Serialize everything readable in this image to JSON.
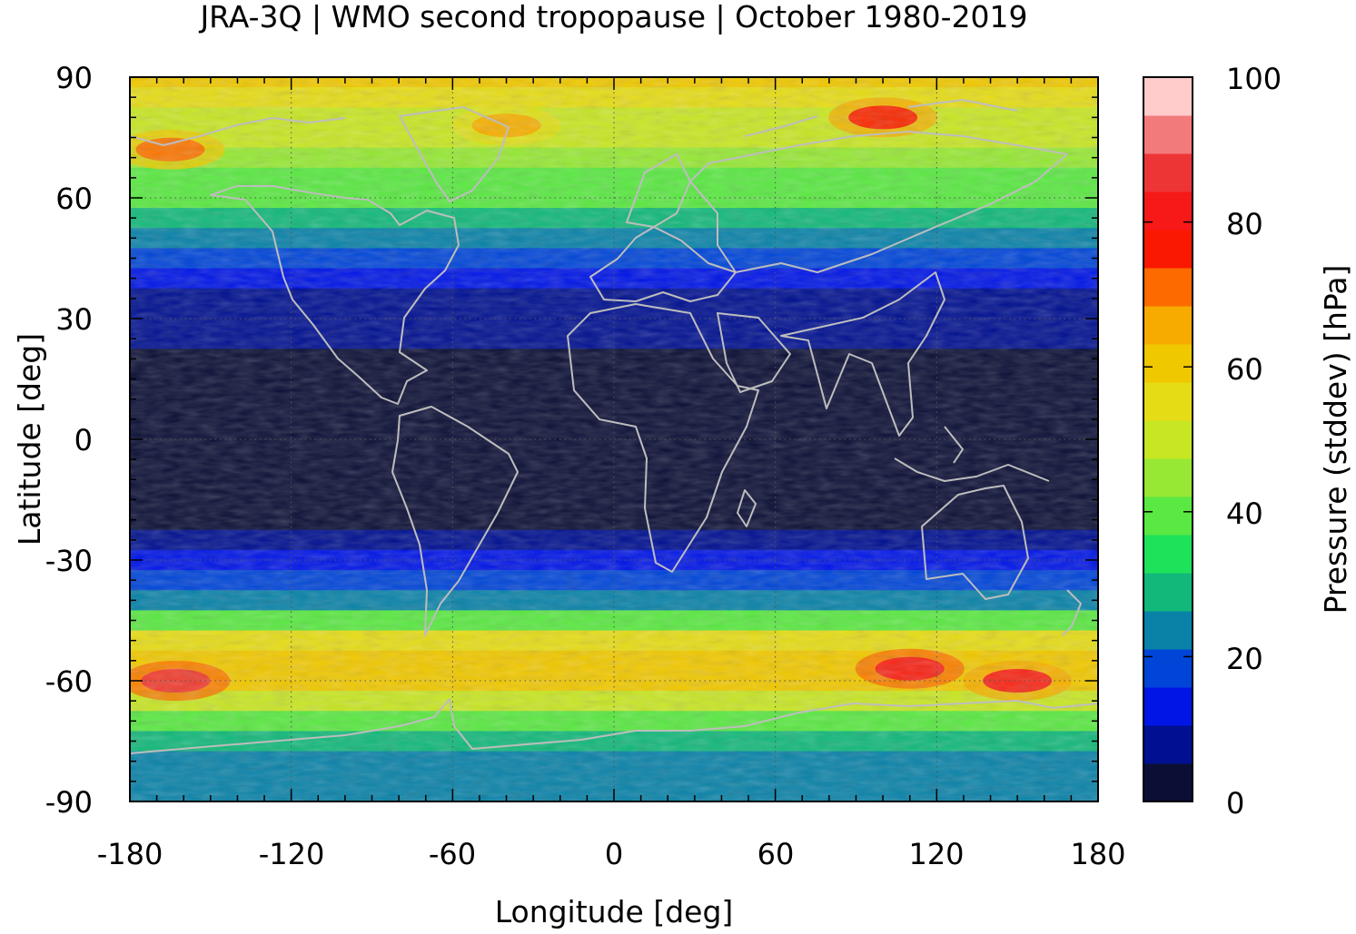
{
  "title": "JRA-3Q | WMO second tropopause | October 1980-2019",
  "map": {
    "xlabel": "Longitude [deg]",
    "ylabel": "Latitude [deg]",
    "x_range": [
      -180,
      180
    ],
    "y_range": [
      -90,
      90
    ],
    "x_ticks": [
      "-180",
      "-120",
      "-60",
      "0",
      "60",
      "120",
      "180"
    ],
    "y_ticks": [
      "90",
      "60",
      "30",
      "0",
      "-30",
      "-60",
      "-90"
    ],
    "coastline_color": "#bdbdbd",
    "grid": "dotted"
  },
  "colorbar": {
    "label": "Pressure (stddev) [hPa]",
    "range": [
      0,
      100
    ],
    "ticks": [
      "0",
      "20",
      "40",
      "60",
      "80",
      "100"
    ],
    "colors": [
      "#0b0f35",
      "#001090",
      "#0015e6",
      "#0045d8",
      "#0a82a8",
      "#12b87a",
      "#1ee25a",
      "#5ae842",
      "#96e834",
      "#c8e624",
      "#e6dc16",
      "#f0c800",
      "#f7aa00",
      "#fc6a00",
      "#fb1800",
      "#f71818",
      "#ee3535",
      "#f27a7a",
      "#ffcbcb"
    ]
  },
  "chart_data": {
    "type": "heatmap",
    "title": "JRA-3Q | WMO second tropopause | October 1980-2019",
    "xlabel": "Longitude [deg]",
    "ylabel": "Latitude [deg]",
    "xlim": [
      -180,
      180
    ],
    "ylim": [
      -90,
      90
    ],
    "colorbar_label": "Pressure (stddev) [hPa]",
    "colorbar_range": [
      0,
      100
    ],
    "zonal_profile": {
      "lat": [
        90,
        85,
        80,
        75,
        70,
        65,
        60,
        55,
        50,
        45,
        40,
        35,
        30,
        25,
        20,
        15,
        10,
        5,
        0,
        -5,
        -10,
        -15,
        -20,
        -25,
        -30,
        -35,
        -40,
        -45,
        -50,
        -55,
        -60,
        -65,
        -70,
        -75,
        -80,
        -85,
        -90
      ],
      "value": [
        60,
        55,
        52,
        50,
        46,
        42,
        38,
        30,
        22,
        16,
        13,
        10,
        8,
        6,
        5,
        5,
        4,
        4,
        3,
        3,
        3,
        4,
        5,
        8,
        12,
        18,
        26,
        38,
        55,
        62,
        58,
        48,
        40,
        30,
        22,
        24,
        22
      ]
    },
    "hotspots": [
      {
        "lon": -163,
        "lat": -60,
        "value": 85
      },
      {
        "lon": 110,
        "lat": -57,
        "value": 82
      },
      {
        "lon": 150,
        "lat": -60,
        "value": 80
      },
      {
        "lon": 100,
        "lat": 80,
        "value": 78
      },
      {
        "lon": -165,
        "lat": 72,
        "value": 70
      },
      {
        "lon": -40,
        "lat": 78,
        "value": 65
      }
    ]
  }
}
